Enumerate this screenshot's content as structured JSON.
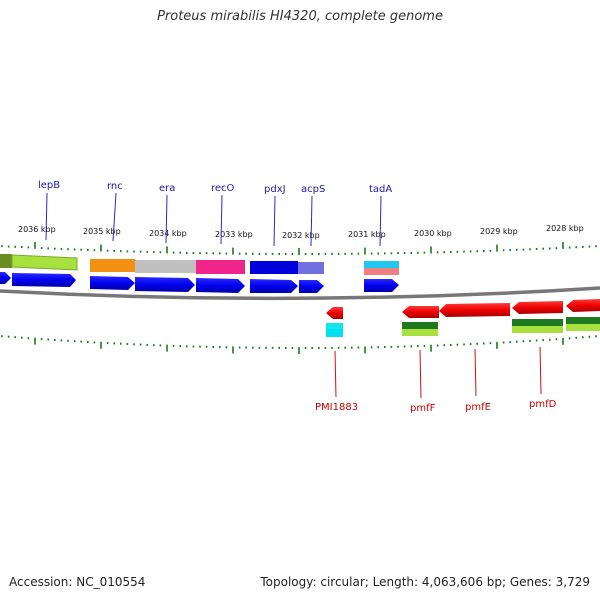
{
  "title": "Proteus mirabilis HI4320, complete genome",
  "footer": {
    "accession": "Accession: NC_010554",
    "info": "Topology: circular; Length: 4,063,606 bp; Genes: 3,729"
  },
  "scale_labels": [
    "2036 kbp",
    "2035 kbp",
    "2034 kbp",
    "2033 kbp",
    "2032 kbp",
    "2031 kbp",
    "2030 kbp",
    "2029 kbp",
    "2028 kbp"
  ],
  "genes_top": [
    "lepB",
    "rnc",
    "era",
    "recO",
    "pdxJ",
    "acpS",
    "tadA"
  ],
  "genes_bottom": [
    "PMI1883",
    "pmfF",
    "pmfE",
    "pmfD"
  ],
  "colors": {
    "forward_arrow": "#0000ee",
    "reverse_arrow": "#ee0000",
    "label_top": "#1a1aa8",
    "label_bottom": "#c40000",
    "tick": "#1c7a1c",
    "backbone": "#888888"
  }
}
